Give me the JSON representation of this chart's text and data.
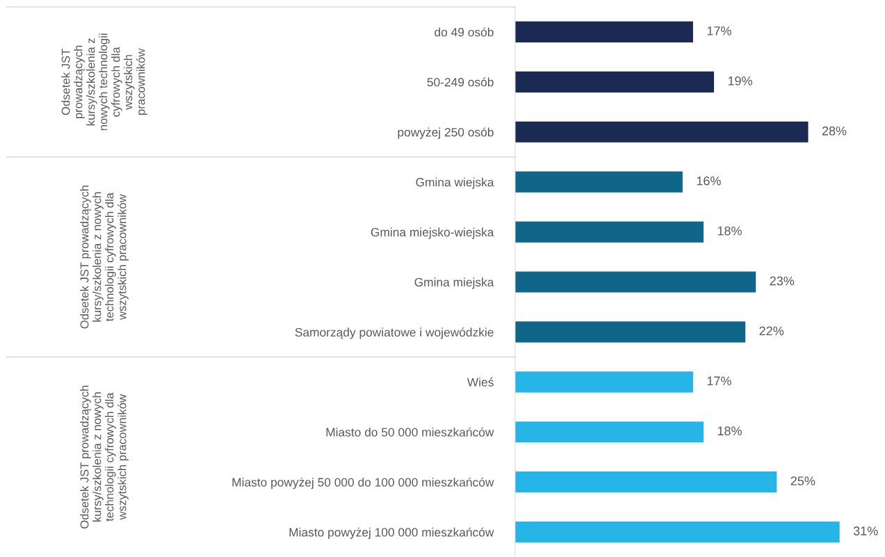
{
  "chart_data": [
    {
      "type": "bar",
      "orientation": "horizontal",
      "ylabel": "Odsetek JST\nprowadzących\nkursy/szkolenia z\nnowych technologii\ncyfrowych dla\nwszytskich\npracowników",
      "categories": [
        "do 49 osób",
        "50-249 osób",
        "powyżej 250 osób"
      ],
      "values": [
        17,
        19,
        28
      ],
      "colors": [
        "#1b2a52",
        "#1b2a52",
        "#1b2a52"
      ],
      "value_labels": [
        "17%",
        "19%",
        "28%"
      ],
      "tick_labels": "y",
      "grid": false
    },
    {
      "type": "bar",
      "orientation": "horizontal",
      "ylabel": "Odsetek JST prowadzących\nkursy/szkolenia z nowych\ntechnologii cyfrowych dla\nwszytskich pracowników",
      "categories": [
        "Gmina wiejska",
        "Gmina miejsko-wiejska",
        "Gmina miejska",
        "Samorządy powiatowe i wojewódzkie"
      ],
      "values": [
        16,
        18,
        23,
        22
      ],
      "colors": [
        "#0f6688",
        "#0f6688",
        "#0f6688",
        "#0f6688"
      ],
      "value_labels": [
        "16%",
        "18%",
        "23%",
        "22%"
      ],
      "tick_labels": "y",
      "grid": false
    },
    {
      "type": "bar",
      "orientation": "horizontal",
      "ylabel": "Odsetek JST prowadzących\nkursy/szkolenia z nowych\ntechnologii cyfrowych dla\nwszytskich pracowników",
      "categories": [
        "Wieś",
        "Miasto do 50 000 mieszkańców",
        "Miasto powyżej 50 000 do 100 000 mieszkańców",
        "Miasto powyżej 100 000 mieszkańców"
      ],
      "values": [
        17,
        18,
        25,
        31
      ],
      "colors": [
        "#27b5e8",
        "#27b5e8",
        "#27b5e8",
        "#27b5e8"
      ],
      "value_labels": [
        "17%",
        "18%",
        "25%",
        "31%"
      ],
      "tick_labels": "y",
      "grid": false
    }
  ]
}
